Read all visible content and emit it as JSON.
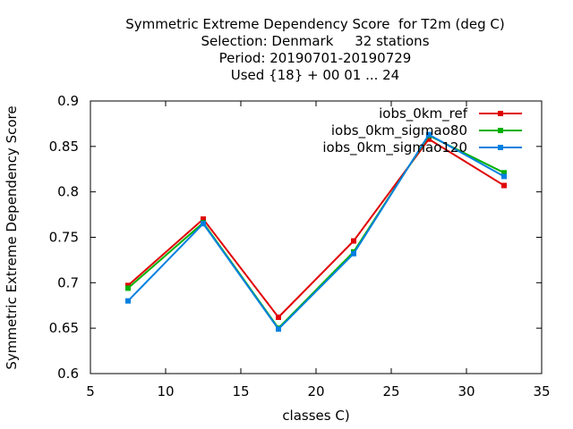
{
  "chart_data": {
    "type": "line",
    "title": [
      "Symmetric Extreme Dependency Score  for T2m (deg C)",
      "Selection: Denmark     32 stations",
      "Period: 20190701-20190729",
      "Used {18} + 00 01 ... 24"
    ],
    "xlabel": "classes C)",
    "ylabel": "Symmetric Extreme Dependency Score",
    "xlim": [
      5,
      35
    ],
    "ylim": [
      0.6,
      0.9
    ],
    "xticks": [
      5,
      10,
      15,
      20,
      25,
      30,
      35
    ],
    "yticks": [
      0.6,
      0.65,
      0.7,
      0.75,
      0.8,
      0.85,
      0.9
    ],
    "xtick_labels": [
      "5",
      "10",
      "15",
      "20",
      "25",
      "30",
      "35"
    ],
    "ytick_labels": [
      "0.6",
      "0.65",
      "0.7",
      "0.75",
      "0.8",
      "0.85",
      "0.9"
    ],
    "legend_position": "top-right",
    "grid": false,
    "x": [
      7.5,
      12.5,
      17.5,
      22.5,
      27.5,
      32.5
    ],
    "series": [
      {
        "name": "iobs_0km_ref",
        "color": "#e00000",
        "values": [
          0.697,
          0.77,
          0.662,
          0.746,
          0.858,
          0.807
        ]
      },
      {
        "name": "iobs_0km_sigmao80",
        "color": "#00b000",
        "values": [
          0.694,
          0.766,
          0.65,
          0.734,
          0.862,
          0.821
        ]
      },
      {
        "name": "iobs_0km_sigmao120",
        "color": "#0080e0",
        "values": [
          0.68,
          0.765,
          0.649,
          0.732,
          0.863,
          0.817
        ]
      }
    ]
  }
}
